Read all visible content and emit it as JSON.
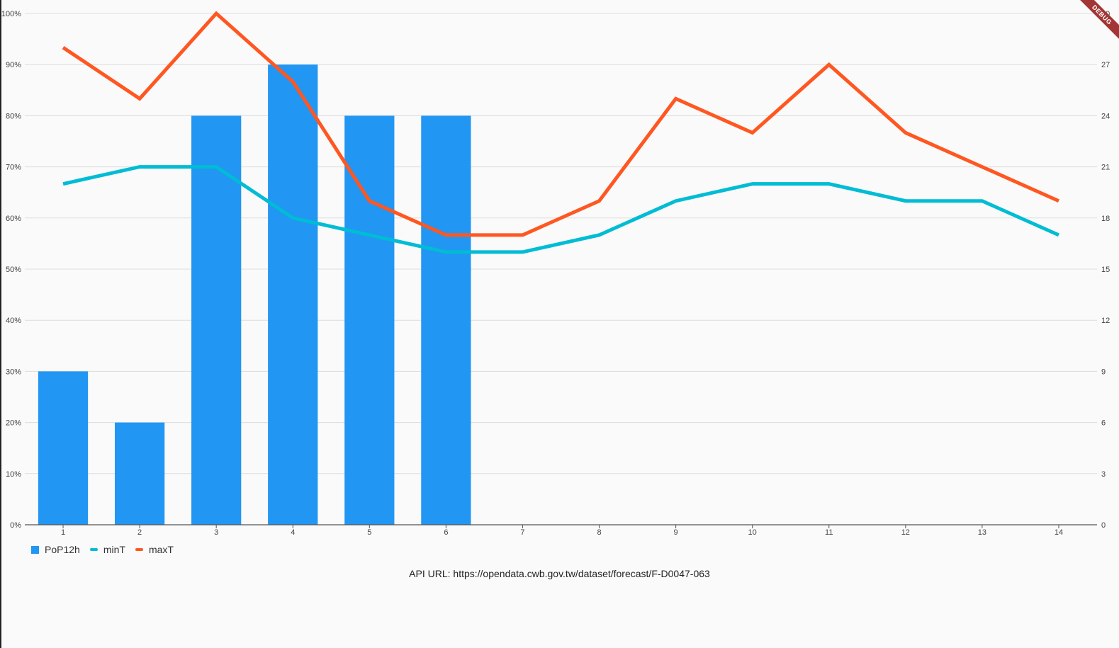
{
  "chart_data": {
    "type": "bar",
    "categories": [
      "1",
      "2",
      "3",
      "4",
      "5",
      "6",
      "7",
      "8",
      "9",
      "10",
      "11",
      "12",
      "13",
      "14"
    ],
    "series": [
      {
        "name": "PoP12h",
        "kind": "bar",
        "axis": "left",
        "color": "#2196f3",
        "values": [
          30,
          20,
          80,
          90,
          80,
          80,
          null,
          null,
          null,
          null,
          null,
          null,
          null,
          null
        ]
      },
      {
        "name": "minT",
        "kind": "line",
        "axis": "right",
        "color": "#00bcd4",
        "values": [
          20,
          21,
          21,
          18,
          17,
          16,
          16,
          17,
          19,
          20,
          20,
          19,
          19,
          17
        ]
      },
      {
        "name": "maxT",
        "kind": "line",
        "axis": "right",
        "color": "#ff5722",
        "values": [
          28,
          25,
          30,
          26,
          19,
          17,
          17,
          19,
          25,
          23,
          27,
          23,
          21,
          19
        ]
      }
    ],
    "left_axis": {
      "ticks": [
        "0%",
        "10%",
        "20%",
        "30%",
        "40%",
        "50%",
        "60%",
        "70%",
        "80%",
        "90%",
        "100%"
      ],
      "ylim": [
        0,
        100
      ]
    },
    "right_axis": {
      "ticks": [
        "0",
        "3",
        "6",
        "9",
        "12",
        "15",
        "18",
        "21",
        "24",
        "27",
        "30"
      ],
      "ylim": [
        0,
        30
      ]
    },
    "grid": true,
    "legend_position": "bottom-left"
  },
  "api_url_text": "API URL: https://opendata.cwb.gov.tw/dataset/forecast/F-D0047-063",
  "debug_banner": "DEBUG"
}
